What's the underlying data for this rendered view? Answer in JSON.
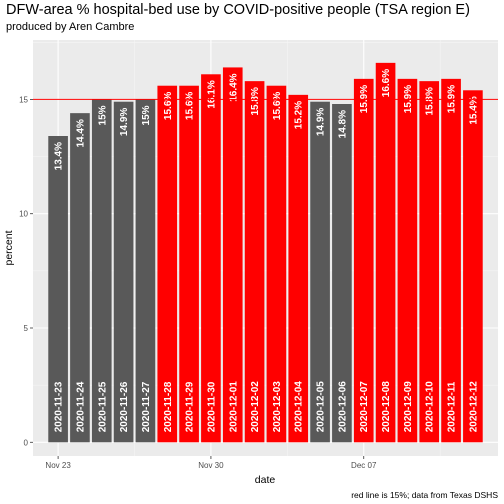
{
  "chart_data": {
    "type": "bar",
    "title": "DFW-area % hospital-bed use by COVID-positive people (TSA region E)",
    "subtitle": "produced by Aren Cambre",
    "caption": "red line is 15%; data from Texas DSHS",
    "xlabel": "date",
    "ylabel": "percent",
    "ylim": [
      -0.6,
      17.6
    ],
    "yticks": [
      0,
      5,
      10,
      15
    ],
    "xtick_labels": [
      {
        "label": "Nov 23",
        "date": "2020-11-23"
      },
      {
        "label": "Nov 30",
        "date": "2020-11-30"
      },
      {
        "label": "Dec 07",
        "date": "2020-12-07"
      }
    ],
    "reference_line": {
      "value": 15,
      "color": "#ff0000"
    },
    "grid": true,
    "background": "#ebebeb",
    "colors": {
      "above": "#ff0000",
      "at_or_below": "#595959"
    },
    "bars": [
      {
        "date": "2020-11-23",
        "value": 13.4,
        "label": "13.4%"
      },
      {
        "date": "2020-11-24",
        "value": 14.4,
        "label": "14.4%"
      },
      {
        "date": "2020-11-25",
        "value": 15.0,
        "label": "15%"
      },
      {
        "date": "2020-11-26",
        "value": 14.9,
        "label": "14.9%"
      },
      {
        "date": "2020-11-27",
        "value": 15.0,
        "label": "15%"
      },
      {
        "date": "2020-11-28",
        "value": 15.6,
        "label": "15.6%"
      },
      {
        "date": "2020-11-29",
        "value": 15.6,
        "label": "15.6%"
      },
      {
        "date": "2020-11-30",
        "value": 16.1,
        "label": "16.1%"
      },
      {
        "date": "2020-12-01",
        "value": 16.4,
        "label": "16.4%"
      },
      {
        "date": "2020-12-02",
        "value": 15.8,
        "label": "15.8%"
      },
      {
        "date": "2020-12-03",
        "value": 15.6,
        "label": "15.6%"
      },
      {
        "date": "2020-12-04",
        "value": 15.2,
        "label": "15.2%"
      },
      {
        "date": "2020-12-05",
        "value": 14.9,
        "label": "14.9%"
      },
      {
        "date": "2020-12-06",
        "value": 14.8,
        "label": "14.8%"
      },
      {
        "date": "2020-12-07",
        "value": 15.9,
        "label": "15.9%"
      },
      {
        "date": "2020-12-08",
        "value": 16.6,
        "label": "16.6%"
      },
      {
        "date": "2020-12-09",
        "value": 15.9,
        "label": "15.9%"
      },
      {
        "date": "2020-12-10",
        "value": 15.8,
        "label": "15.8%"
      },
      {
        "date": "2020-12-11",
        "value": 15.9,
        "label": "15.9%"
      },
      {
        "date": "2020-12-12",
        "value": 15.4,
        "label": "15.4%"
      }
    ]
  }
}
